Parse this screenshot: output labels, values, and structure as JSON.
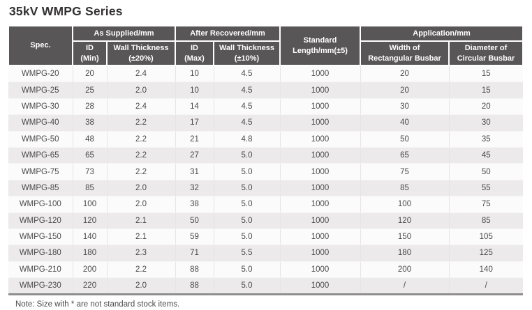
{
  "page": {
    "title": "35kV WMPG Series",
    "note": "Note: Size with * are not standard stock items."
  },
  "colors": {
    "header_bg": "#595657",
    "header_text": "#ffffff",
    "row_even_bg": "#eceaeb",
    "row_odd_bg": "#fbfbfb",
    "bottom_border": "#8f8e8e",
    "body_text": "#4b4b4b"
  },
  "table": {
    "header": {
      "spec": "Spec.",
      "as_supplied": "As Supplied/mm",
      "after_recovered": "After Recovered/mm",
      "standard_length": "Standard\nLength/mm(±5)",
      "application": "Application/mm",
      "id_min": "ID\n(Min)",
      "wall_thickness_20": "Wall Thickness\n(±20%)",
      "id_max": "ID\n(Max)",
      "wall_thickness_10": "Wall Thickness\n(±10%)",
      "width_rect_busbar": "Width of\nRectangular Busbar",
      "dia_circ_busbar": "Diameter of\nCircular Busbar"
    },
    "rows": [
      [
        "WMPG-20",
        "20",
        "2.4",
        "10",
        "4.5",
        "1000",
        "20",
        "15"
      ],
      [
        "WMPG-25",
        "25",
        "2.0",
        "10",
        "4.5",
        "1000",
        "20",
        "15"
      ],
      [
        "WMPG-30",
        "28",
        "2.4",
        "14",
        "4.5",
        "1000",
        "30",
        "20"
      ],
      [
        "WMPG-40",
        "38",
        "2.2",
        "17",
        "4.5",
        "1000",
        "40",
        "30"
      ],
      [
        "WMPG-50",
        "48",
        "2.2",
        "21",
        "4.8",
        "1000",
        "50",
        "35"
      ],
      [
        "WMPG-65",
        "65",
        "2.2",
        "27",
        "5.0",
        "1000",
        "65",
        "45"
      ],
      [
        "WMPG-75",
        "73",
        "2.2",
        "31",
        "5.0",
        "1000",
        "75",
        "50"
      ],
      [
        "WMPG-85",
        "85",
        "2.0",
        "32",
        "5.0",
        "1000",
        "85",
        "55"
      ],
      [
        "WMPG-100",
        "100",
        "2.0",
        "38",
        "5.0",
        "1000",
        "100",
        "75"
      ],
      [
        "WMPG-120",
        "120",
        "2.1",
        "50",
        "5.0",
        "1000",
        "120",
        "85"
      ],
      [
        "WMPG-150",
        "140",
        "2.1",
        "59",
        "5.0",
        "1000",
        "150",
        "105"
      ],
      [
        "WMPG-180",
        "180",
        "2.3",
        "71",
        "5.5",
        "1000",
        "180",
        "125"
      ],
      [
        "WMPG-210",
        "200",
        "2.2",
        "88",
        "5.0",
        "1000",
        "200",
        "140"
      ],
      [
        "WMPG-230",
        "220",
        "2.0",
        "88",
        "5.0",
        "1000",
        "/",
        "/"
      ]
    ]
  }
}
